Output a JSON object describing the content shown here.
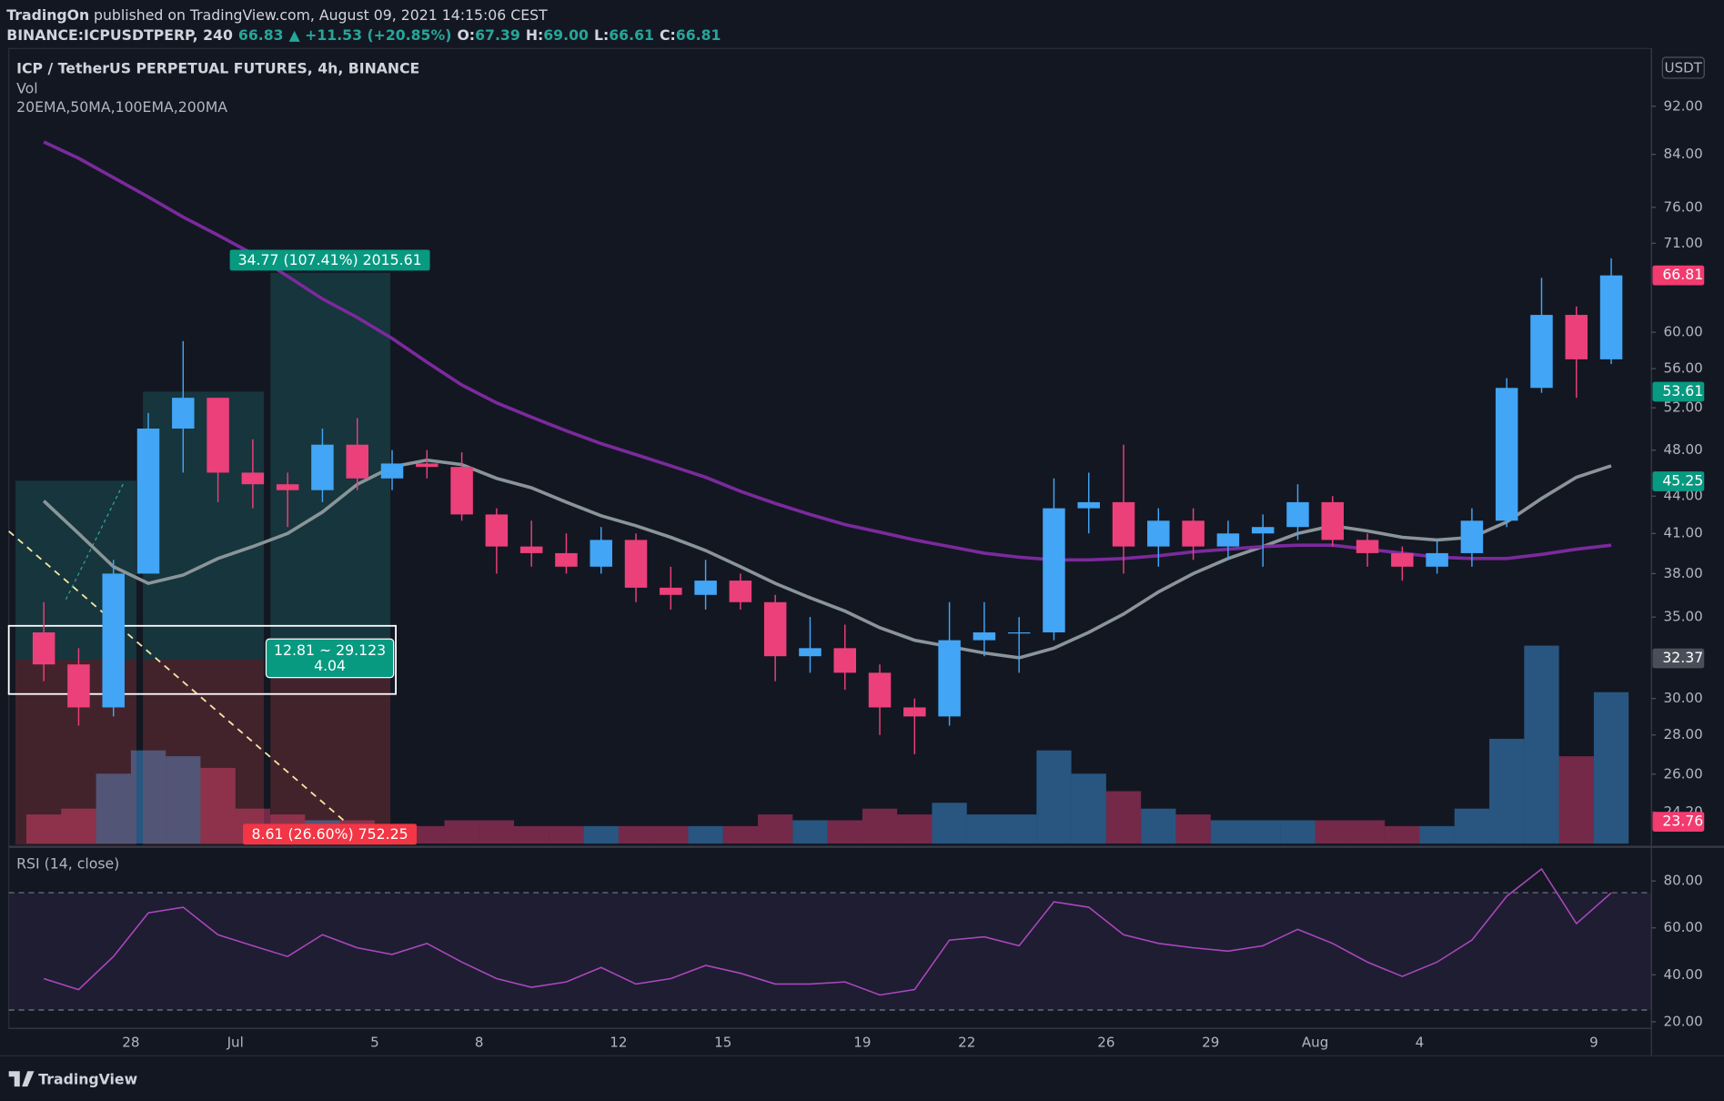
{
  "header": {
    "publisher": "TradingOn",
    "published": "published on TradingView.com, August 09, 2021 14:15:06 CEST",
    "symbol": "BINANCE:ICPUSDTPERP, 240",
    "last": "66.83",
    "change": "▲ +11.53 (+20.85%)",
    "ohlc": [
      [
        "O:",
        "67.39"
      ],
      [
        "H:",
        "69.00"
      ],
      [
        "L:",
        "66.61"
      ],
      [
        "C:",
        "66.81"
      ]
    ]
  },
  "footer": {
    "brand": "TradingView"
  },
  "chart_data": [
    {
      "type": "candlestick",
      "title": "ICP / TetherUS PERPETUAL FUTURES, 4h, BINANCE",
      "subtitles": [
        "Vol",
        "20EMA,50MA,100EMA,200MA"
      ],
      "currency": "USDT",
      "categories": [
        null,
        null,
        null,
        "28",
        null,
        null,
        "Jul",
        null,
        null,
        null,
        "5",
        null,
        null,
        "8",
        null,
        null,
        null,
        "12",
        null,
        null,
        "15",
        null,
        null,
        null,
        "19",
        null,
        null,
        "22",
        null,
        null,
        null,
        "26",
        null,
        null,
        "29",
        null,
        null,
        "Aug",
        null,
        null,
        "4",
        null,
        null,
        null,
        null,
        "9"
      ],
      "open": [
        34,
        32,
        29.5,
        38,
        50,
        53,
        46,
        45,
        44.5,
        48.5,
        45.5,
        46.8,
        46.5,
        42.5,
        40,
        39.5,
        38.5,
        40.5,
        37,
        36.5,
        37.5,
        36,
        32.5,
        33,
        31.5,
        29.5,
        29,
        33.5,
        34,
        34,
        43,
        43.5,
        40,
        42,
        40,
        41,
        41.5,
        43.5,
        40.5,
        39.5,
        38.5,
        39.5,
        42,
        54,
        62,
        57
      ],
      "high": [
        36,
        33,
        39,
        51.5,
        59,
        53,
        49,
        46,
        50,
        51,
        48,
        48,
        47.8,
        43,
        42,
        41,
        41.5,
        41,
        38.5,
        39,
        38,
        36.5,
        35,
        34.5,
        32,
        30,
        36,
        36,
        35,
        45.5,
        46,
        48.5,
        43,
        43,
        42,
        42.5,
        45,
        44,
        41,
        40,
        40.5,
        43,
        55,
        66.5,
        63,
        69
      ],
      "low": [
        31,
        28.5,
        29,
        38,
        46,
        43.5,
        43,
        41.5,
        43.5,
        44.5,
        44.5,
        45.5,
        42,
        38,
        38.5,
        38,
        38,
        36,
        35.5,
        35.5,
        35.5,
        31,
        31.5,
        30.5,
        28,
        27,
        28.5,
        32.5,
        31.5,
        33.5,
        41,
        38,
        38.5,
        39,
        39,
        38.5,
        40.5,
        40,
        38.5,
        37.5,
        38,
        38.5,
        41.5,
        53.5,
        53,
        56.5
      ],
      "close": [
        32,
        29.5,
        38,
        50,
        53,
        46,
        45,
        44.5,
        48.5,
        45.5,
        46.8,
        46.5,
        42.5,
        40,
        39.5,
        38.5,
        40.5,
        37,
        36.5,
        37.5,
        36,
        32.5,
        33,
        31.5,
        29.5,
        29,
        33.5,
        34,
        34,
        43,
        43.5,
        40,
        42,
        40,
        41,
        41.5,
        43.5,
        40.5,
        39.5,
        38.5,
        39.5,
        42,
        54,
        62,
        57,
        66.81
      ],
      "volume": [
        25,
        30,
        60,
        80,
        75,
        65,
        30,
        25,
        20,
        20,
        15,
        15,
        20,
        20,
        15,
        15,
        15,
        15,
        15,
        15,
        15,
        25,
        20,
        20,
        30,
        25,
        35,
        25,
        25,
        80,
        60,
        45,
        30,
        25,
        20,
        20,
        20,
        20,
        20,
        15,
        15,
        30,
        90,
        170,
        75,
        130
      ],
      "up_color": "#42a5f5",
      "down_color": "#ec407a",
      "series": [
        {
          "color": "#8a9599",
          "values": [
            43.6,
            41.0,
            38.5,
            37.3,
            37.9,
            39.1,
            40.0,
            41.0,
            42.7,
            45.0,
            46.5,
            47.1,
            46.7,
            45.5,
            44.7,
            43.5,
            42.4,
            41.6,
            40.7,
            39.7,
            38.5,
            37.3,
            36.3,
            35.4,
            34.3,
            33.5,
            33.1,
            32.7,
            32.4,
            33.0,
            34.0,
            35.2,
            36.7,
            38.0,
            39.1,
            40.0,
            41.0,
            41.6,
            41.2,
            40.7,
            40.5,
            40.7,
            41.9,
            43.8,
            45.6,
            46.6
          ]
        },
        {
          "color": "#7b2a9c",
          "values": [
            86,
            83.4,
            80.4,
            77.5,
            74.6,
            72.1,
            69.6,
            66.7,
            63.9,
            61.7,
            59.3,
            56.7,
            54.3,
            52.5,
            51.1,
            49.8,
            48.6,
            47.6,
            46.6,
            45.6,
            44.4,
            43.4,
            42.5,
            41.7,
            41.1,
            40.5,
            40.0,
            39.5,
            39.2,
            39.0,
            39.0,
            39.1,
            39.3,
            39.6,
            39.8,
            40.0,
            40.1,
            40.1,
            39.8,
            39.5,
            39.2,
            39.1,
            39.1,
            39.4,
            39.8,
            40.1
          ]
        }
      ],
      "ylim": [
        22.8,
        102
      ],
      "log_scale": true,
      "yticks": [
        {
          "value": 92,
          "label": "92.00"
        },
        {
          "value": 84,
          "label": "84.00"
        },
        {
          "value": 76,
          "label": "76.00"
        },
        {
          "value": 71,
          "label": "71.00"
        },
        {
          "value": 60,
          "label": "60.00"
        },
        {
          "value": 56,
          "label": "56.00"
        },
        {
          "value": 52,
          "label": "52.00"
        },
        {
          "value": 48,
          "label": "48.00"
        },
        {
          "value": 44,
          "label": "44.00"
        },
        {
          "value": 41,
          "label": "41.00"
        },
        {
          "value": 38,
          "label": "38.00"
        },
        {
          "value": 35,
          "label": "35.00"
        },
        {
          "value": 30,
          "label": "30.00"
        },
        {
          "value": 28,
          "label": "28.00"
        },
        {
          "value": 26,
          "label": "26.00"
        },
        {
          "value": 24.2,
          "label": "24.20"
        }
      ],
      "price_labels": [
        66.81,
        53.61,
        45.25,
        32.37,
        23.76
      ],
      "price_label_colors": [
        "#f23b6f",
        "#089981",
        "#089981",
        "#4a4e59",
        "#f23b6f"
      ],
      "annotations": [
        "34.77 (107.41%) 2015.61",
        "12.81 ~ 29.123",
        "4.04",
        "8.61 (26.60%) 752.25"
      ]
    },
    {
      "type": "line",
      "title": "RSI (14, close)",
      "color": "#ab47bc",
      "values": [
        38.4,
        33.7,
        47.8,
        66.4,
        68.8,
        57.1,
        52.4,
        47.8,
        57.1,
        51.5,
        48.7,
        53.4,
        45.4,
        38.4,
        34.7,
        37.0,
        43.1,
        36.1,
        38.4,
        44.0,
        40.7,
        36.1,
        36.1,
        37.0,
        31.4,
        33.7,
        54.8,
        56.2,
        52.4,
        71.1,
        68.8,
        57.1,
        53.4,
        51.5,
        50.1,
        52.4,
        59.4,
        53.4,
        45.4,
        39.3,
        45.4,
        54.8,
        73.5,
        85.1,
        61.8,
        74.9
      ],
      "ylim": [
        17.2,
        93.6
      ],
      "bands": [
        75,
        25
      ],
      "yticks": [
        {
          "value": 80,
          "label": "80.00"
        },
        {
          "value": 60,
          "label": "60.00"
        },
        {
          "value": 40,
          "label": "40.00"
        },
        {
          "value": 20,
          "label": "20.00"
        }
      ]
    }
  ]
}
